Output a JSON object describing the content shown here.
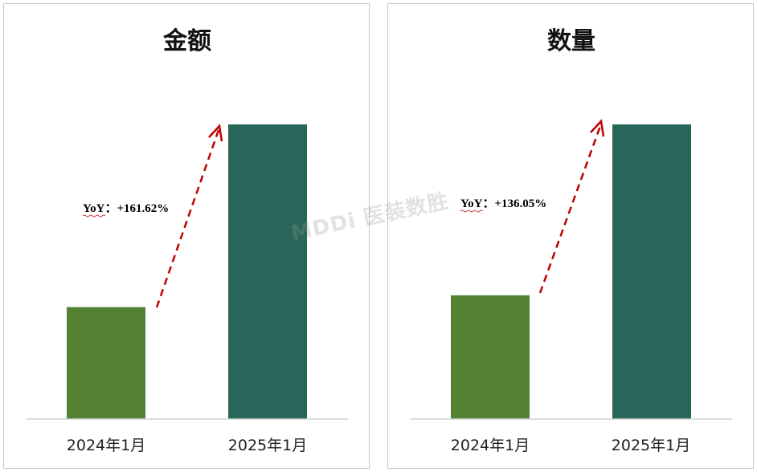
{
  "chart_data": [
    {
      "type": "bar",
      "title": "金额",
      "categories": [
        "2024年1月",
        "2025年1月"
      ],
      "values": [
        38,
        100
      ],
      "ylim": [
        0,
        100
      ],
      "yoy_label": "YoY：+161.62%",
      "colors": [
        "#548235",
        "#276659"
      ],
      "arrow_color": "#c00000",
      "grid": false
    },
    {
      "type": "bar",
      "title": "数量",
      "categories": [
        "2024年1月",
        "2025年1月"
      ],
      "values": [
        42,
        100
      ],
      "ylim": [
        0,
        100
      ],
      "yoy_label": "YoY：+136.05%",
      "colors": [
        "#548235",
        "#276659"
      ],
      "arrow_color": "#c00000",
      "grid": false
    }
  ],
  "watermark": "MDDi 医装数胜"
}
